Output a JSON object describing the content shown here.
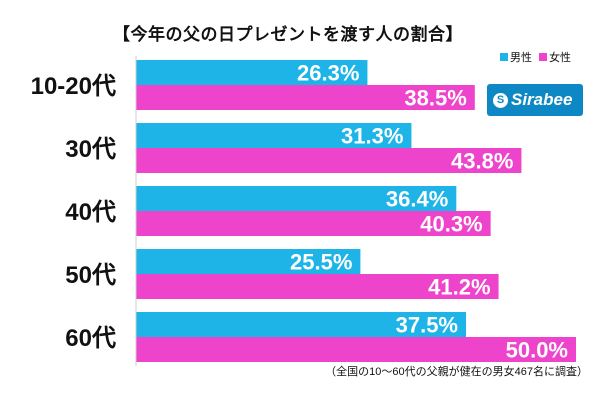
{
  "title": "【今年の父の日プレゼントを渡す人の割合】",
  "legend": [
    {
      "label": "男性",
      "color": "#1eb4e8"
    },
    {
      "label": "女性",
      "color": "#ee44cc"
    }
  ],
  "logo": {
    "text": "Sirabee",
    "mark": "S"
  },
  "footnote": "（全国の10～60代の父親が健在の男女467名に調査）",
  "chart_data": {
    "type": "bar",
    "orientation": "horizontal",
    "title": "【今年の父の日プレゼントを渡す人の割合】",
    "categories": [
      "10-20代",
      "30代",
      "40代",
      "50代",
      "60代"
    ],
    "series": [
      {
        "name": "男性",
        "color": "#1eb4e8",
        "values": [
          26.3,
          31.3,
          36.4,
          25.5,
          37.5
        ],
        "labels": [
          "26.3%",
          "31.3%",
          "36.4%",
          "25.5%",
          "37.5%"
        ]
      },
      {
        "name": "女性",
        "color": "#ee44cc",
        "values": [
          38.5,
          43.8,
          40.3,
          41.2,
          50.0
        ],
        "labels": [
          "38.5%",
          "43.8%",
          "40.3%",
          "41.2%",
          "50.0%"
        ]
      }
    ],
    "xlim": [
      0,
      50
    ],
    "grid": false,
    "legend_position": "top-right",
    "value_labels": "inside-end"
  }
}
